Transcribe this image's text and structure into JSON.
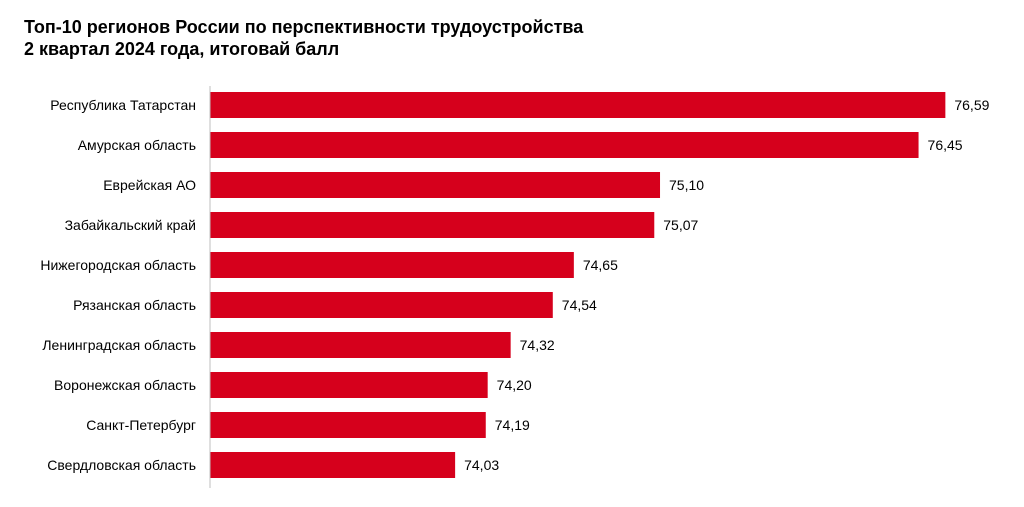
{
  "chart_data": {
    "type": "bar",
    "orientation": "horizontal",
    "title": "Топ-10 регионов России по перспективности трудоустройства",
    "subtitle": "2 квартал 2024 года, итоговай балл",
    "categories": [
      "Республика Татарстан",
      "Амурская область",
      "Еврейская АО",
      "Забайкальский край",
      "Нижегородская область",
      "Рязанская область",
      "Ленинградская область",
      "Воронежская область",
      "Санкт-Петербург",
      "Свердловская область"
    ],
    "values": [
      76.59,
      76.45,
      75.1,
      75.07,
      74.65,
      74.54,
      74.32,
      74.2,
      74.19,
      74.03
    ],
    "value_labels": [
      "76,59",
      "76,45",
      "75,10",
      "75,07",
      "74,65",
      "74,54",
      "74,32",
      "74,20",
      "74,19",
      "74,03"
    ],
    "xlim": [
      72.75,
      76.65
    ],
    "grid": false,
    "legend": "none",
    "bar_color": "#d6001c",
    "axis_color": "#bfbfbf"
  }
}
